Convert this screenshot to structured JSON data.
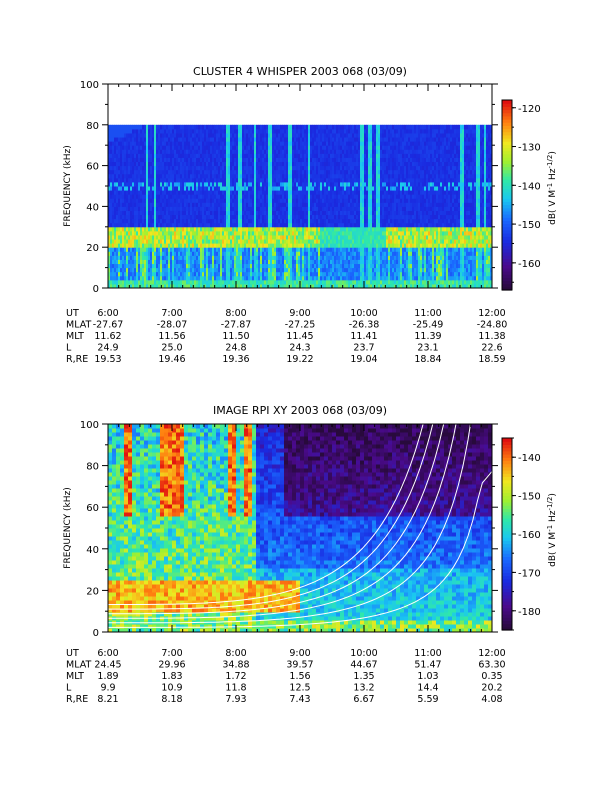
{
  "chart_data": [
    {
      "type": "heatmap",
      "title": "CLUSTER 4 WHISPER 2003 068 (03/09)",
      "ylabel": "FREQUENCY (kHz)",
      "ylim": [
        0,
        100
      ],
      "y_ticks": [
        "0",
        "20",
        "40",
        "60",
        "80",
        "100"
      ],
      "x_ticks": [
        "6:00",
        "7:00",
        "8:00",
        "9:00",
        "10:00",
        "11:00",
        "12:00"
      ],
      "colorbar": {
        "label": "dB( V M⁻¹ Hz⁻¹ᐟ²)",
        "label_parts": {
          "prefix": "dB( V M",
          "exp1": "-1",
          "mid": " Hz",
          "exp2": "-1/2",
          "suffix": ")"
        },
        "range": [
          -167,
          -118
        ],
        "ticks": [
          "-120",
          "-130",
          "-140",
          "-150",
          "-160"
        ]
      },
      "data_fmax_khz": 80,
      "features": {
        "emission_band_khz": [
          20,
          30
        ],
        "narrow_band_khz": 50
      },
      "ephemeris": {
        "rows": [
          {
            "label": "UT",
            "values": [
              "6:00",
              "7:00",
              "8:00",
              "9:00",
              "10:00",
              "11:00",
              "12:00"
            ]
          },
          {
            "label": "MLAT",
            "values": [
              "-27.67",
              "-28.07",
              "-27.87",
              "-27.25",
              "-26.38",
              "-25.49",
              "-24.80"
            ]
          },
          {
            "label": "MLT",
            "values": [
              "11.62",
              "11.56",
              "11.50",
              "11.45",
              "11.41",
              "11.39",
              "11.38"
            ]
          },
          {
            "label": "L",
            "values": [
              "24.9",
              "25.0",
              "24.8",
              "24.3",
              "23.7",
              "23.1",
              "22.6"
            ]
          },
          {
            "label": "R,RE",
            "values": [
              "19.53",
              "19.46",
              "19.36",
              "19.22",
              "19.04",
              "18.84",
              "18.59"
            ]
          }
        ]
      }
    },
    {
      "type": "heatmap",
      "title": "IMAGE RPI XY 2003 068 (03/09)",
      "ylabel": "FREQUENCY (kHz)",
      "ylim": [
        0,
        100
      ],
      "y_ticks": [
        "0",
        "20",
        "40",
        "60",
        "80",
        "100"
      ],
      "x_ticks": [
        "6:00",
        "7:00",
        "8:00",
        "9:00",
        "10:00",
        "11:00",
        "12:00"
      ],
      "colorbar": {
        "label": "dB( V M⁻¹ Hz⁻¹ᐟ²)",
        "label_parts": {
          "prefix": "dB( V M",
          "exp1": "-1",
          "mid": " Hz",
          "exp2": "-1/2",
          "suffix": ")"
        },
        "range": [
          -185,
          -135
        ],
        "ticks": [
          "-140",
          "-150",
          "-160",
          "-170",
          "-180"
        ]
      },
      "overlay_curves_count": 6,
      "ephemeris": {
        "rows": [
          {
            "label": "UT",
            "values": [
              "6:00",
              "7:00",
              "8:00",
              "9:00",
              "10:00",
              "11:00",
              "12:00"
            ]
          },
          {
            "label": "MLAT",
            "values": [
              "24.45",
              "29.96",
              "34.88",
              "39.57",
              "44.67",
              "51.47",
              "63.30"
            ]
          },
          {
            "label": "MLT",
            "values": [
              "1.89",
              "1.83",
              "1.72",
              "1.56",
              "1.35",
              "1.03",
              "0.35"
            ]
          },
          {
            "label": "L",
            "values": [
              "9.9",
              "10.9",
              "11.8",
              "12.5",
              "13.2",
              "14.4",
              "20.2"
            ]
          },
          {
            "label": "R,RE",
            "values": [
              "8.21",
              "8.18",
              "7.93",
              "7.43",
              "6.67",
              "5.59",
              "4.08"
            ]
          }
        ]
      }
    }
  ]
}
